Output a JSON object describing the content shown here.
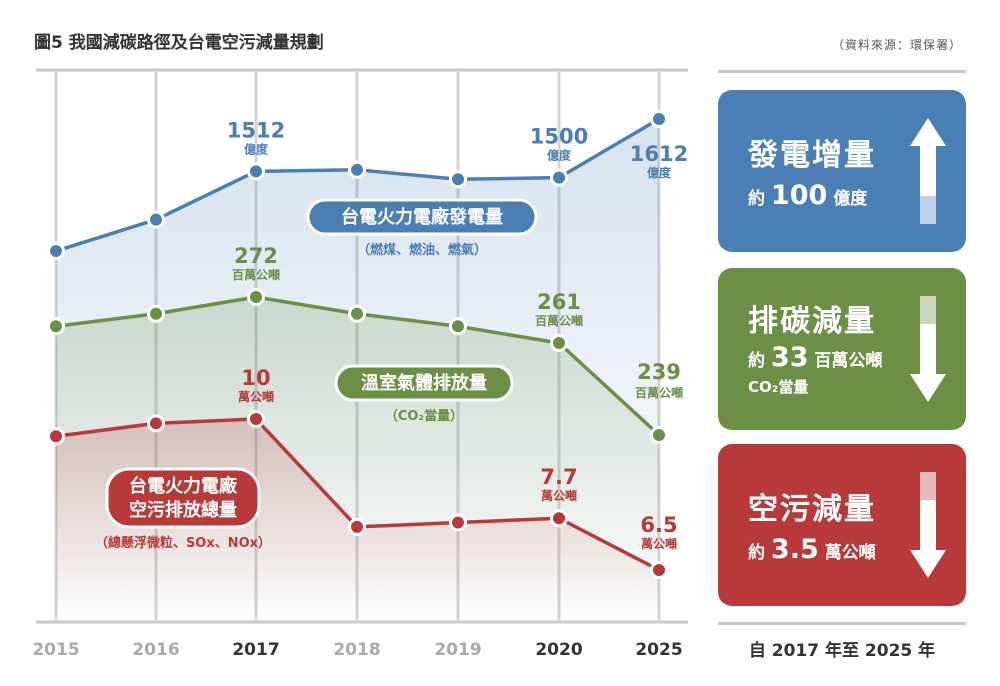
{
  "header": {
    "title": "圖5 我國減碳路徑及台電空污減量規劃",
    "source": "（資料來源：環保署）"
  },
  "colors": {
    "blue": "#4a7fb5",
    "green": "#6b8f45",
    "red": "#b8393a"
  },
  "chart_data": {
    "type": "line",
    "categories": [
      "2015",
      "2016",
      "2017",
      "2018",
      "2019",
      "2020",
      "2025"
    ],
    "bold_categories": [
      "2017",
      "2020",
      "2025"
    ],
    "series": [
      {
        "key": "power",
        "name": "台電火力電廠發電量",
        "note": "（燃煤、燃油、燃氣）",
        "color": "#4a7fb5",
        "values": [
          1360,
          1420,
          1512,
          1515,
          1497,
          1500,
          1612
        ],
        "point_labels": [
          {
            "index": 2,
            "value": "1512",
            "unit": "億度"
          },
          {
            "index": 5,
            "value": "1500",
            "unit": "億度"
          },
          {
            "index": 6,
            "value": "1612",
            "unit": "億度"
          }
        ]
      },
      {
        "key": "ghg",
        "name": "溫室氣體排放量",
        "note": "（CO₂當量）",
        "color": "#6b8f45",
        "values": [
          265,
          268,
          272,
          268,
          265,
          261,
          239
        ],
        "point_labels": [
          {
            "index": 2,
            "value": "272",
            "unit": "百萬公噸"
          },
          {
            "index": 5,
            "value": "261",
            "unit": "百萬公噸"
          },
          {
            "index": 6,
            "value": "239",
            "unit": "百萬公噸"
          }
        ]
      },
      {
        "key": "pollution",
        "name_lines": [
          "台電火力電廠",
          "空污排放總量"
        ],
        "note": "（總懸浮微粒、SOx、NOx）",
        "color": "#b8393a",
        "values": [
          9.6,
          9.9,
          10,
          7.5,
          7.6,
          7.7,
          6.5
        ],
        "point_labels": [
          {
            "index": 2,
            "value": "10",
            "unit": "萬公噸"
          },
          {
            "index": 5,
            "value": "7.7",
            "unit": "萬公噸"
          },
          {
            "index": 6,
            "value": "6.5",
            "unit": "萬公噸"
          }
        ]
      }
    ]
  },
  "cards": {
    "power": {
      "heading": "發電增量",
      "prefix": "約",
      "value": "100",
      "unit": "億度"
    },
    "ghg": {
      "heading": "排碳減量",
      "prefix": "約",
      "value": "33",
      "unit": "百萬公噸",
      "extra": "CO₂當量"
    },
    "pollution": {
      "heading": "空污減量",
      "prefix": "約",
      "value": "3.5",
      "unit": "萬公噸"
    }
  },
  "footer": "自 2017 年至 2025 年"
}
